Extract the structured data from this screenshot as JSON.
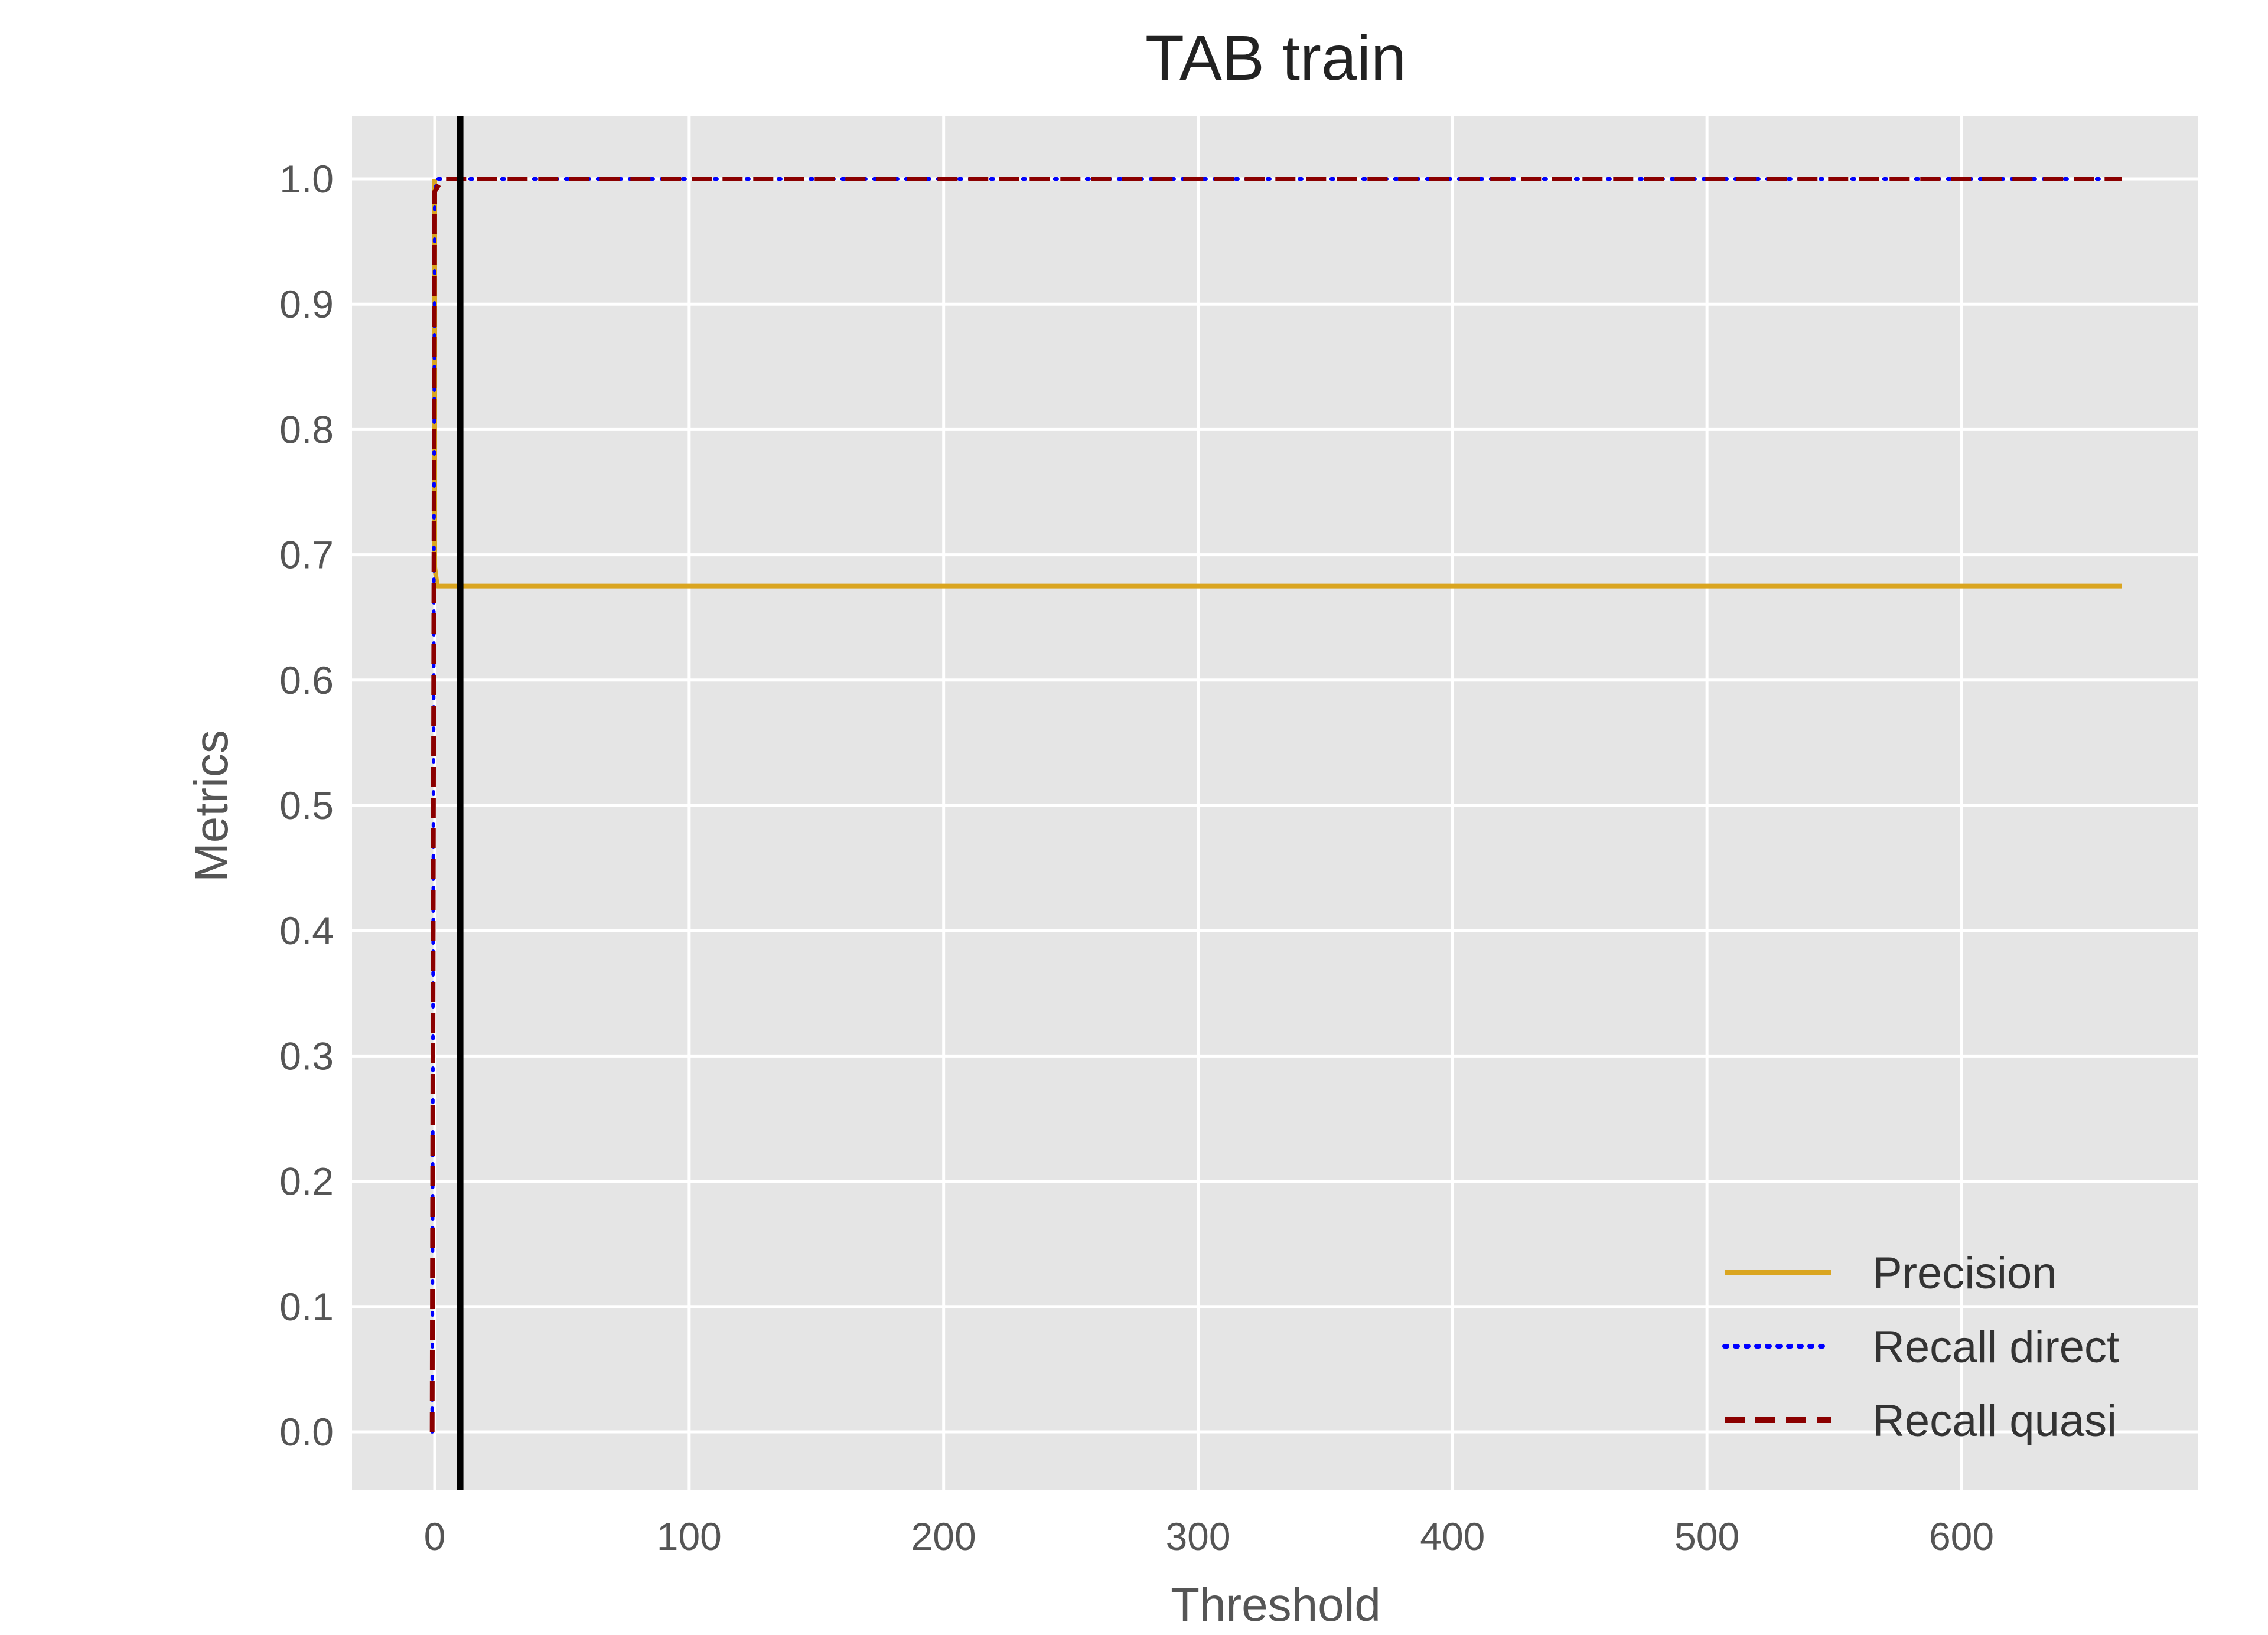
{
  "chart_data": {
    "type": "line",
    "title": "TAB train",
    "xlabel": "Threshold",
    "ylabel": "Metrics",
    "xlim": [
      -33,
      693
    ],
    "ylim": [
      -0.048,
      1.05
    ],
    "xticks": [
      0,
      100,
      200,
      300,
      400,
      500,
      600
    ],
    "xtick_labels": [
      "0",
      "100",
      "200",
      "300",
      "400",
      "500",
      "600"
    ],
    "yticks": [
      0.0,
      0.1,
      0.2,
      0.3,
      0.4,
      0.5,
      0.6,
      0.7,
      0.8,
      0.9,
      1.0
    ],
    "ytick_labels": [
      "0.0",
      "0.1",
      "0.2",
      "0.3",
      "0.4",
      "0.5",
      "0.6",
      "0.7",
      "0.8",
      "0.9",
      "1.0"
    ],
    "grid": true,
    "legend_position": "bottom-right",
    "series": [
      {
        "name": "Precision",
        "color": "#DAA520",
        "style": "solid",
        "x": [
          0,
          0,
          1,
          663
        ],
        "y": [
          1.0,
          0.69,
          0.675,
          0.675
        ]
      },
      {
        "name": "Recall direct",
        "color": "#0000FF",
        "style": "dotted",
        "x": [
          -1,
          0,
          1,
          663
        ],
        "y": [
          0.0,
          0.99,
          1.0,
          1.0
        ]
      },
      {
        "name": "Recall quasi",
        "color": "#8B0000",
        "style": "dashed",
        "x": [
          -1,
          0,
          3,
          663
        ],
        "y": [
          0.0,
          0.99,
          1.0,
          1.0
        ]
      }
    ],
    "vertical_line": {
      "x": 10,
      "color": "#000000"
    }
  }
}
